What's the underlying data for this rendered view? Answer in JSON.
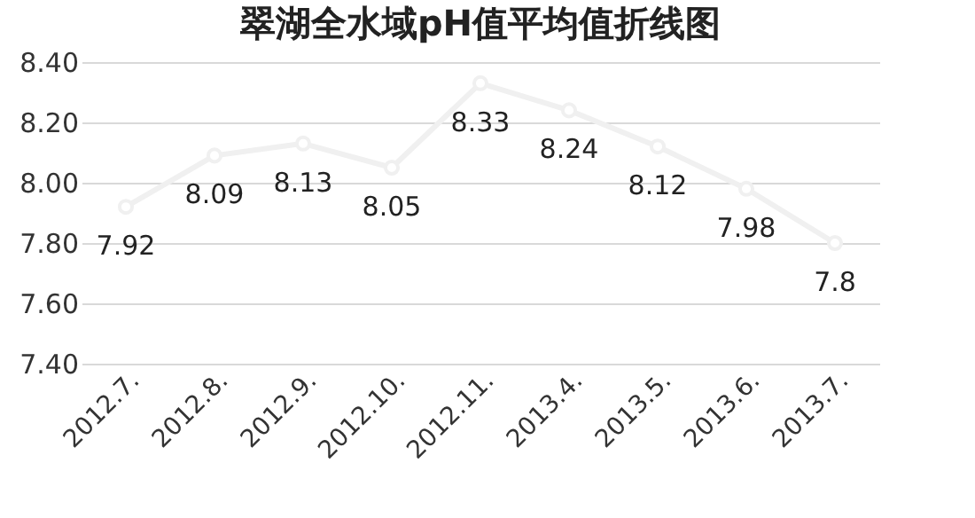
{
  "chart_data": {
    "type": "line",
    "title": "翠湖全水域pH值平均值折线图",
    "categories": [
      "2012.7.",
      "2012.8.",
      "2012.9.",
      "2012.10.",
      "2012.11.",
      "2013.4.",
      "2013.5.",
      "2013.6.",
      "2013.7."
    ],
    "series": [
      {
        "color": "#f0f0f0",
        "values": [
          7.92,
          8.09,
          8.13,
          8.05,
          8.33,
          8.24,
          8.12,
          7.98,
          7.8
        ]
      }
    ],
    "ylim": [
      7.4,
      8.4
    ],
    "yticks": [
      {
        "value": 7.4,
        "label": "7.40"
      },
      {
        "value": 7.6,
        "label": "7.60"
      },
      {
        "value": 7.8,
        "label": "7.80"
      },
      {
        "value": 8.0,
        "label": "8.00"
      },
      {
        "value": 8.2,
        "label": "8.20"
      },
      {
        "value": 8.4,
        "label": "8.40"
      }
    ],
    "grid": "y",
    "marker": "circle",
    "line_style": "solid",
    "data_labels": true
  }
}
